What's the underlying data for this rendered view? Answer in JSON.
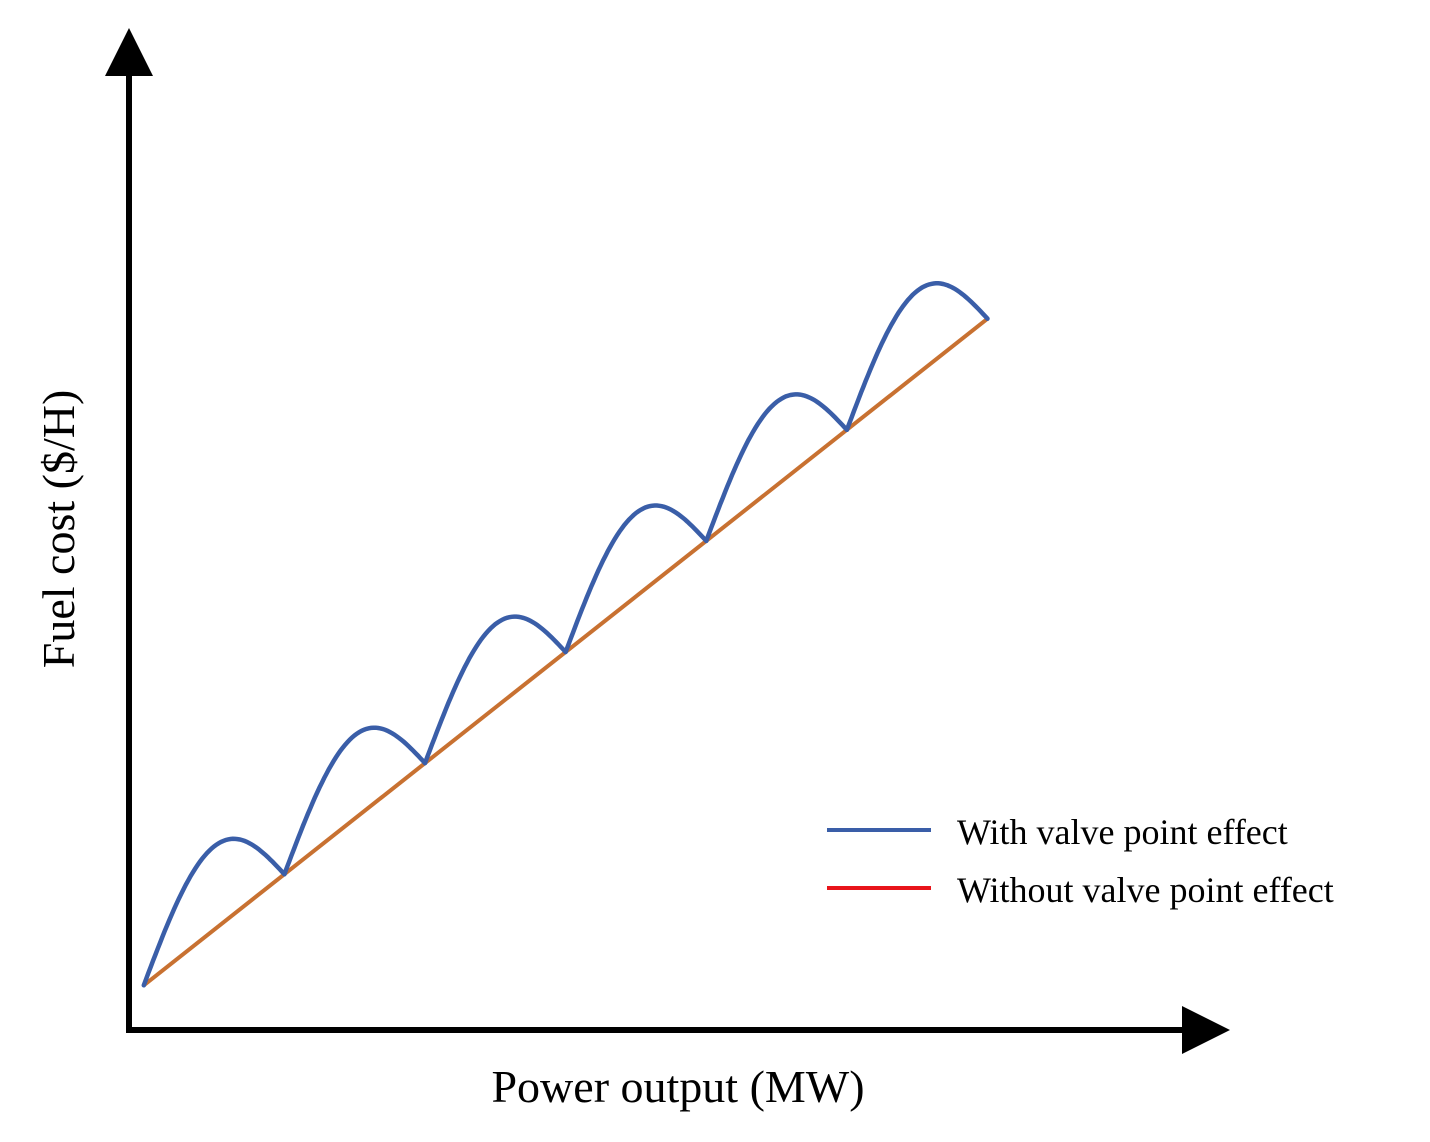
{
  "chart_data": {
    "type": "line",
    "title": "",
    "xlabel": "Power output (MW)",
    "ylabel": "Fuel cost ($/H)",
    "grid": false,
    "legend_position": "bottom-right",
    "xlim": [
      0,
      12
    ],
    "ylim": [
      0,
      12
    ],
    "valve_points": [
      1,
      2.5,
      4,
      5.5,
      7,
      8.5,
      10
    ],
    "ripple_amplitude": 1.0,
    "series": [
      {
        "name": "With valve point effect",
        "color": "#3a5ea8",
        "kind": "valve-ripple",
        "x_start": 1,
        "x_end": 10,
        "y_start": 2,
        "y_end": 10
      },
      {
        "name": "Without valve point effect",
        "color": "#c87131",
        "legend_color": "#e8141a",
        "kind": "linear",
        "x": [
          1,
          10
        ],
        "y": [
          2,
          10
        ]
      }
    ]
  }
}
